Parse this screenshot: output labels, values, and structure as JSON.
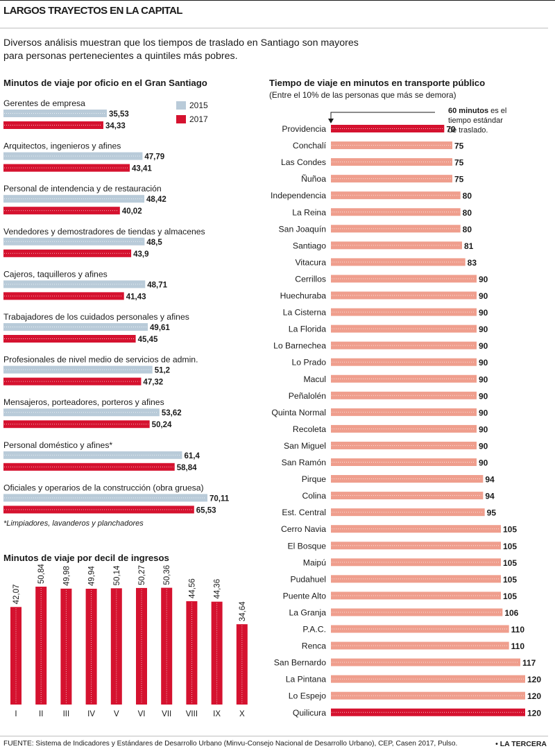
{
  "header": {
    "title": "LARGOS TRAYECTOS EN LA CAPITAL",
    "intro_line1": "Diversos análisis muestran que los tiempos de traslado en Santiago son mayores",
    "intro_line2": "para personas pertenecientes a quintiles más pobres."
  },
  "footer": {
    "source": "FUENTE: Sistema de Indicadores y Estándares de Desarrollo Urbano (Minvu-Consejo Nacional de Desarrollo Urbano), CEP, Casen 2017, Pulso.",
    "brand": "• LA TERCERA"
  },
  "colors": {
    "y2015": "#b9cbd9",
    "y2017": "#d5122f",
    "salmon": "#ef9e8d",
    "dots": "#ffffff"
  },
  "chart_data": [
    {
      "type": "bar",
      "orientation": "horizontal",
      "title": "Minutos de viaje por oficio en el Gran Santiago",
      "legend": [
        "2015",
        "2017"
      ],
      "legend_position": "top-right",
      "footnote": "*Limpiadores, lavanderos y planchadores",
      "categories": [
        "Gerentes de empresa",
        "Arquitectos, ingenieros y afines",
        "Personal de intendencia y de restauración",
        "Vendedores y demostradores de tiendas y almacenes",
        "Cajeros, taquilleros y afines",
        "Trabajadores de los cuidados personales y afines",
        "Profesionales de nivel medio de servicios de admin.",
        "Mensajeros, porteadores, porteros y afines",
        "Personal doméstico y afines*",
        "Oficiales y operarios de la construcción (obra gruesa)"
      ],
      "series": [
        {
          "name": "2015",
          "values": [
            35.53,
            47.79,
            48.42,
            48.5,
            48.71,
            49.61,
            51.2,
            53.62,
            61.4,
            70.11
          ],
          "labels": [
            "35,53",
            "47,79",
            "48,42",
            "48,5",
            "48,71",
            "49,61",
            "51,2",
            "53,62",
            "61,4",
            "70,11"
          ]
        },
        {
          "name": "2017",
          "values": [
            34.33,
            43.41,
            40.02,
            43.9,
            41.43,
            45.45,
            47.32,
            50.24,
            58.84,
            65.53
          ],
          "labels": [
            "34,33",
            "43,41",
            "40,02",
            "43,9",
            "41,43",
            "45,45",
            "47,32",
            "50,24",
            "58,84",
            "65,53"
          ]
        }
      ]
    },
    {
      "type": "bar",
      "orientation": "vertical",
      "title": "Minutos de viaje por decil de ingresos",
      "categories": [
        "I",
        "II",
        "III",
        "IV",
        "V",
        "VI",
        "VII",
        "VIII",
        "IX",
        "X"
      ],
      "values": [
        42.07,
        50.84,
        49.98,
        49.94,
        50.14,
        50.27,
        50.36,
        44.56,
        44.36,
        34.64
      ],
      "labels": [
        "42,07",
        "50,84",
        "49,98",
        "49,94",
        "50,14",
        "50,27",
        "50,36",
        "44,56",
        "44,36",
        "34,64"
      ]
    },
    {
      "type": "bar",
      "orientation": "horizontal",
      "title": "Tiempo de viaje en minutos en transporte público",
      "subtitle": "(Entre el 10% de las personas que más se demora)",
      "annotation_bold": "60 minutos",
      "annotation_line1": "es el",
      "annotation_line2": "tiempo estándar",
      "annotation_line3": "de traslado.",
      "reference_value": 60,
      "categories": [
        "Providencia",
        "Conchalí",
        "Las Condes",
        "Ñuñoa",
        "Independencia",
        "La Reina",
        "San Joaquín",
        "Santiago",
        "Vitacura",
        "Cerrillos",
        "Huechuraba",
        "La Cisterna",
        "La Florida",
        "Lo Barnechea",
        "Lo Prado",
        "Macul",
        "Peñalolén",
        "Quinta Normal",
        "Recoleta",
        "San Miguel",
        "San Ramón",
        "Pirque",
        "Colina",
        "Est. Central",
        "Cerro Navia",
        "El Bosque",
        "Maipú",
        "Pudahuel",
        "Puente Alto",
        "La Granja",
        "P.A.C.",
        "Renca",
        "San Bernardo",
        "La Pintana",
        "Lo Espejo",
        "Quilicura"
      ],
      "values": [
        70,
        75,
        75,
        75,
        80,
        80,
        80,
        81,
        83,
        90,
        90,
        90,
        90,
        90,
        90,
        90,
        90,
        90,
        90,
        90,
        90,
        94,
        94,
        95,
        105,
        105,
        105,
        105,
        105,
        106,
        110,
        110,
        117,
        120,
        120,
        120
      ],
      "highlighted": [
        "Providencia",
        "Quilicura"
      ]
    }
  ]
}
